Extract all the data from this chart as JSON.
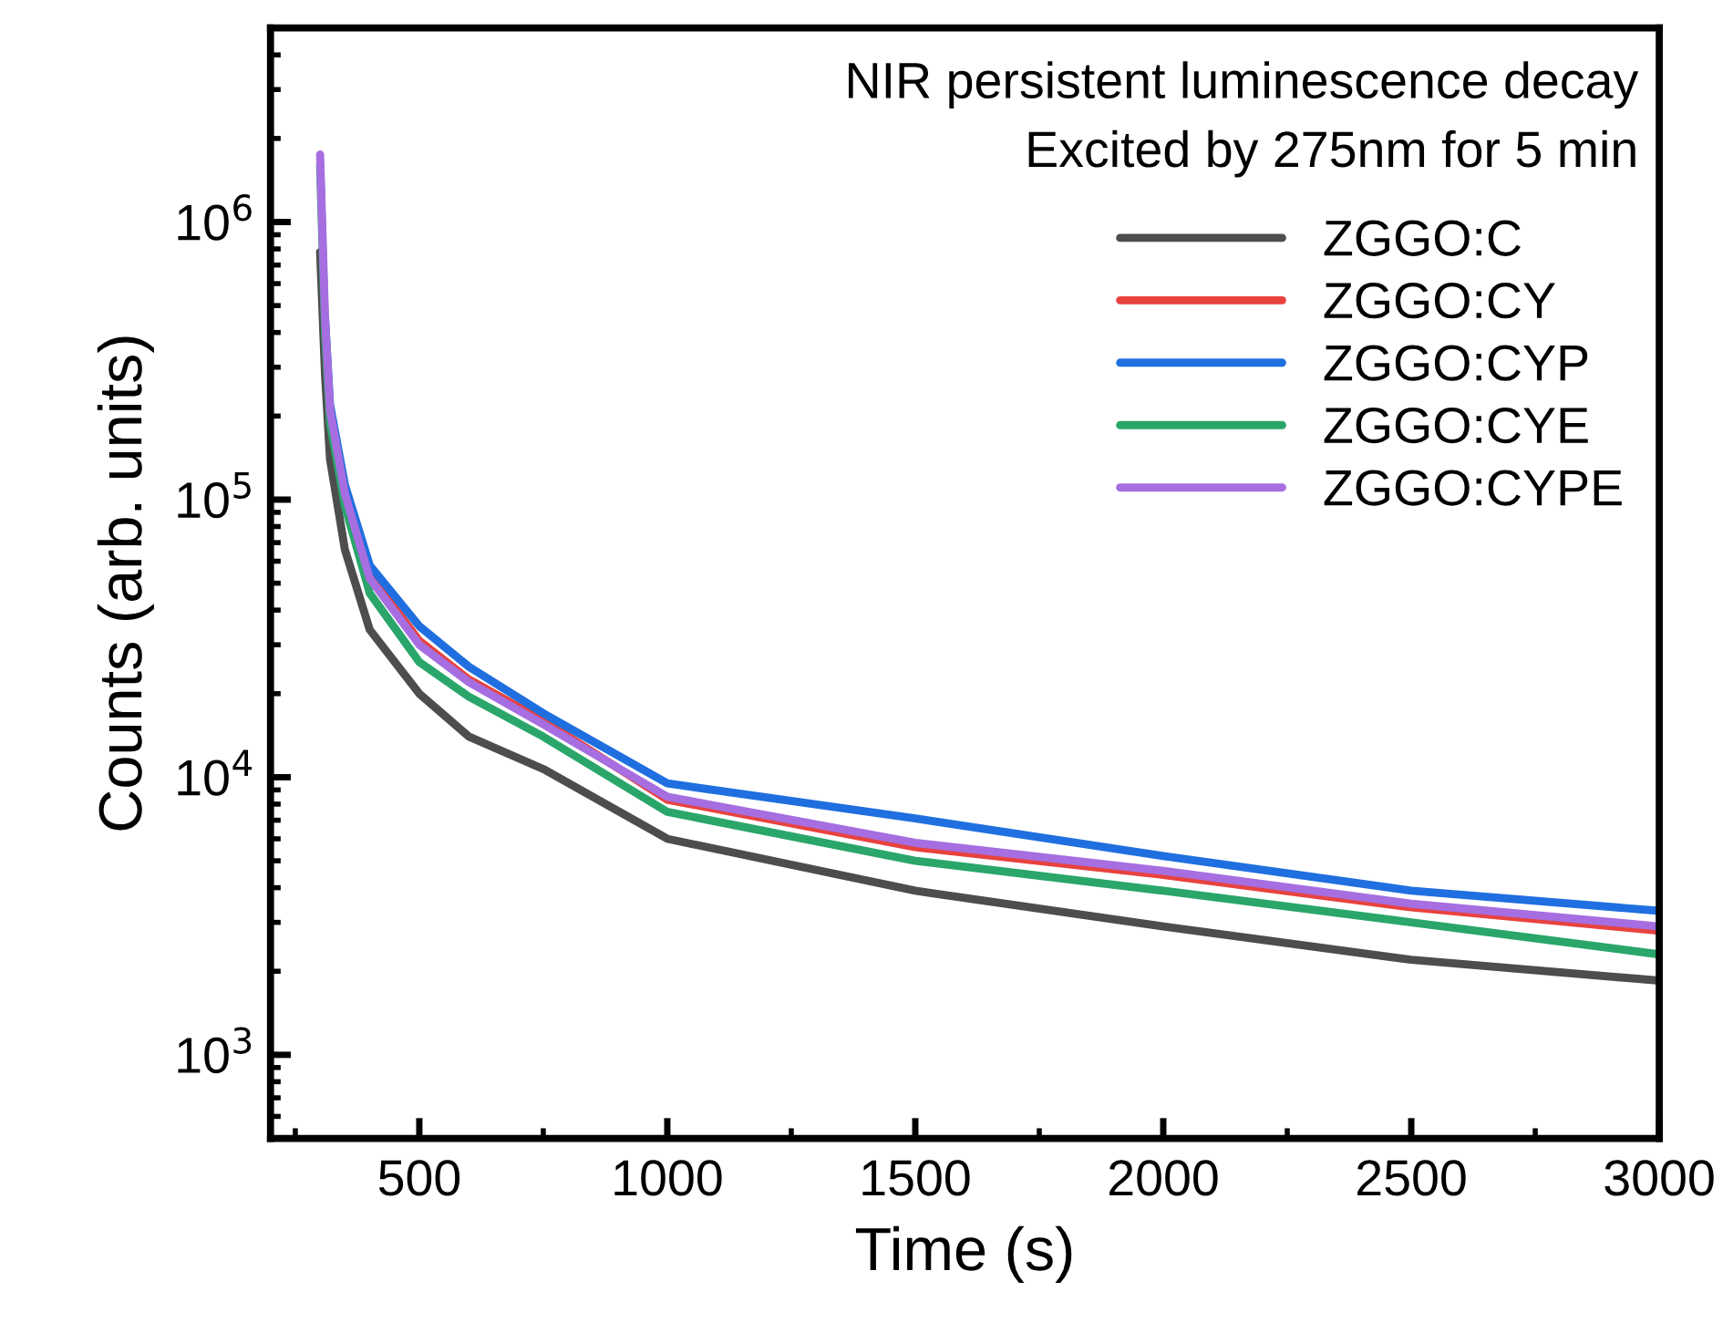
{
  "chart_data": {
    "type": "line",
    "xlabel": "Time (s)",
    "ylabel": "Counts (arb. units)",
    "annotations": [
      "NIR persistent luminescence decay",
      "Excited by 275nm for 5 min"
    ],
    "x": [
      300,
      310,
      320,
      350,
      400,
      500,
      600,
      750,
      1000,
      1500,
      2000,
      2500,
      3000
    ],
    "series": [
      {
        "name": "ZGGO:C",
        "color": "#4d4d4d",
        "values": [
          780000,
          280000,
          140000,
          66000,
          34000,
          20000,
          14000,
          10700,
          6000,
          3900,
          2900,
          2200,
          1850
        ]
      },
      {
        "name": "ZGGO:CY",
        "color": "#e8423f",
        "values": [
          null,
          null,
          null,
          null,
          54000,
          31000,
          22500,
          16000,
          8300,
          5600,
          4450,
          3400,
          2800
        ]
      },
      {
        "name": "ZGGO:CYP",
        "color": "#1f6fe0",
        "values": [
          null,
          450000,
          220000,
          113000,
          58000,
          35000,
          25000,
          17000,
          9500,
          7100,
          5200,
          3900,
          3300
        ]
      },
      {
        "name": "ZGGO:CYE",
        "color": "#2aa66b",
        "values": [
          1600000,
          400000,
          190000,
          95000,
          46000,
          26000,
          19500,
          14000,
          7500,
          5000,
          3900,
          3000,
          2300
        ]
      },
      {
        "name": "ZGGO:CYPE",
        "color": "#a66ee0",
        "values": [
          1750000,
          450000,
          210000,
          105000,
          52000,
          30000,
          22000,
          15500,
          8500,
          5800,
          4600,
          3500,
          2900
        ]
      }
    ],
    "log": "y",
    "xlim": [
      200,
      3000
    ],
    "ylim": [
      500,
      5000000
    ],
    "xticks": [
      500,
      1000,
      1500,
      2000,
      2500,
      3000
    ],
    "yticks": [
      {
        "value": 1000,
        "label": "10$^{3}$"
      },
      {
        "value": 10000,
        "label": "10$^{4}$"
      },
      {
        "value": 100000,
        "label": "10$^{5}$"
      },
      {
        "value": 1000000,
        "label": "10$^{6}$"
      }
    ],
    "legend": "top right",
    "grid": false,
    "marker": "none",
    "line_style": "solid"
  }
}
